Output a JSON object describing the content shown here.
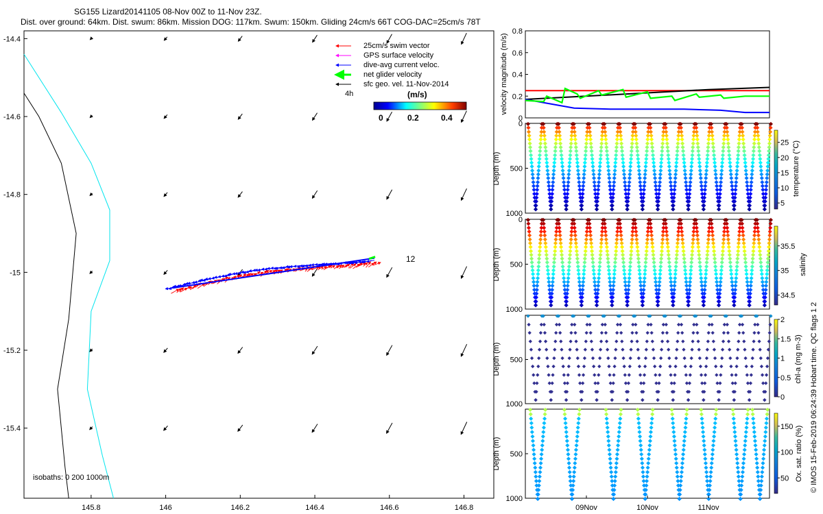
{
  "title_line1": "SG155 Lizard20141105 08-Nov 00Z to 11-Nov 23Z.",
  "title_line2": "Dist. over ground: 64km. Dist. swum: 86km. Mission DOG: 117km. Swum: 150km. Gliding 24cm/s 66T COG-DAC=25cm/s 78T",
  "footer": "© IMOS 15-Feb-2019 06:24:39 Hobart time. QC flags 1  2",
  "colors": {
    "swim": "#ff0000",
    "gps": "#ff00ff",
    "dac": "#0000ff",
    "net": "#00ff00",
    "geo": "#000000",
    "isobath0": "#000000",
    "isobath200": "#000000",
    "isobath1000": "#00e5ee"
  },
  "chart_data": [
    {
      "type": "scatter",
      "name": "map",
      "xlim": [
        145.62,
        146.88
      ],
      "ylim": [
        -15.58,
        -14.38
      ],
      "xticks": [
        "145.8",
        "146",
        "146.2",
        "146.4",
        "146.6",
        "146.8"
      ],
      "xtick_values": [
        145.8,
        146.0,
        146.2,
        146.4,
        146.6,
        146.8
      ],
      "yticks": [
        "-14.4",
        "-14.6",
        "-14.8",
        "-15",
        "-15.2",
        "-15.4"
      ],
      "ytick_values": [
        -14.4,
        -14.6,
        -14.8,
        -15.0,
        -15.2,
        -15.4
      ],
      "legend": [
        "25cm/s swim vector",
        "GPS surface velocity",
        "dive-avg current veloc.",
        "net glider velocity",
        "sfc geo. vel. 11-Nov-2014"
      ],
      "legend_placement": "top-right",
      "label_4h": "4h",
      "colorbar_label": "(m/s)",
      "colorbar_ticks": [
        "0",
        "0.2",
        "0.4"
      ],
      "colorbar_values": [
        0,
        0.2,
        0.4
      ],
      "colorbar_range": [
        0,
        0.5
      ],
      "isobath_label": "isobaths: 0   200  1000m",
      "track_end_label": "12",
      "geo_grid_lon": [
        145.8,
        146.0,
        146.2,
        146.4,
        146.6,
        146.8
      ],
      "geo_grid_lat": [
        -14.4,
        -14.6,
        -14.8,
        -15.0,
        -15.2,
        -15.4
      ],
      "track_start": [
        146.02,
        -15.04
      ],
      "track_end": [
        146.56,
        -14.96
      ]
    },
    {
      "type": "line",
      "name": "velocity",
      "ylabel": "velocity magnitude (m/s)",
      "ylim": [
        0,
        0.8
      ],
      "yticks": [
        "0",
        "0.2",
        "0.4",
        "0.6",
        "0.8"
      ],
      "ytick_values": [
        0,
        0.2,
        0.4,
        0.6,
        0.8
      ],
      "xlim": [
        0,
        4
      ],
      "series": [
        {
          "color": "#ff0000",
          "x": [
            0,
            4
          ],
          "y": [
            0.25,
            0.25
          ]
        },
        {
          "color": "#000000",
          "x": [
            0,
            1,
            2,
            3,
            4
          ],
          "y": [
            0.17,
            0.2,
            0.23,
            0.26,
            0.28
          ]
        },
        {
          "color": "#0000ff",
          "x": [
            0,
            0.4,
            0.8,
            1.4,
            2.0,
            2.6,
            3.2,
            3.6,
            4
          ],
          "y": [
            0.17,
            0.13,
            0.09,
            0.08,
            0.08,
            0.08,
            0.07,
            0.05,
            0.05
          ]
        },
        {
          "color": "#00ff00",
          "x": [
            0,
            0.3,
            0.35,
            0.6,
            0.65,
            0.85,
            0.9,
            1.2,
            1.25,
            1.6,
            1.65,
            2.0,
            2.05,
            2.4,
            2.45,
            2.8,
            2.85,
            3.2,
            3.25,
            3.6,
            3.65,
            4
          ],
          "y": [
            0.16,
            0.15,
            0.2,
            0.14,
            0.27,
            0.22,
            0.18,
            0.25,
            0.21,
            0.26,
            0.19,
            0.24,
            0.18,
            0.2,
            0.16,
            0.22,
            0.19,
            0.21,
            0.18,
            0.2,
            0.2,
            0.2
          ]
        }
      ]
    },
    {
      "type": "scatter",
      "name": "temperature",
      "ylabel": "Depth (m)",
      "ylim": [
        1000,
        0
      ],
      "yticks": [
        "0",
        "500",
        "1000"
      ],
      "ytick_values": [
        0,
        500,
        1000
      ],
      "colorbar_label": "temperature (°C)",
      "colorbar_ticks": [
        "5",
        "10",
        "15",
        "20",
        "25"
      ],
      "colorbar_values": [
        5,
        10,
        15,
        20,
        25
      ],
      "colorbar_range": [
        3,
        29
      ],
      "profiles": 16,
      "max_depth": 950
    },
    {
      "type": "scatter",
      "name": "salinity",
      "ylabel": "Depth (m)",
      "ylim": [
        1000,
        0
      ],
      "yticks": [
        "0",
        "500",
        "1000"
      ],
      "ytick_values": [
        0,
        500,
        1000
      ],
      "colorbar_label": "salinity",
      "colorbar_ticks": [
        "34.5",
        "35",
        "35.5"
      ],
      "colorbar_values": [
        34.5,
        35,
        35.5
      ],
      "colorbar_range": [
        34.3,
        35.9
      ],
      "profiles": 16,
      "max_depth": 950
    },
    {
      "type": "scatter",
      "name": "chlorophyll",
      "ylabel": "Depth (m)",
      "ylim": [
        1000,
        0
      ],
      "yticks": [
        "500",
        "1000"
      ],
      "ytick_values": [
        500,
        1000
      ],
      "colorbar_label": "chl-a (mg m-3)",
      "colorbar_ticks": [
        "0",
        "0.5",
        "1",
        "1.5",
        "2"
      ],
      "colorbar_values": [
        0,
        0.5,
        1,
        1.5,
        2
      ],
      "colorbar_range": [
        0,
        2
      ],
      "profiles": 16,
      "max_depth": 950
    },
    {
      "type": "scatter",
      "name": "oxygen",
      "ylabel": "Depth (m)",
      "ylim": [
        1000,
        0
      ],
      "yticks": [
        "500",
        "1000"
      ],
      "ytick_values": [
        500,
        1000
      ],
      "colorbar_label": "Ox. sat. ratio (%)",
      "colorbar_ticks": [
        "50",
        "100",
        "150"
      ],
      "colorbar_values": [
        50,
        100,
        150
      ],
      "colorbar_range": [
        20,
        175
      ],
      "profiles": 8,
      "max_depth": 1000,
      "xticks": [
        "09Nov",
        "10Nov",
        "11Nov"
      ],
      "xtick_values": [
        1,
        2,
        3
      ],
      "xlim": [
        0,
        4
      ]
    }
  ]
}
